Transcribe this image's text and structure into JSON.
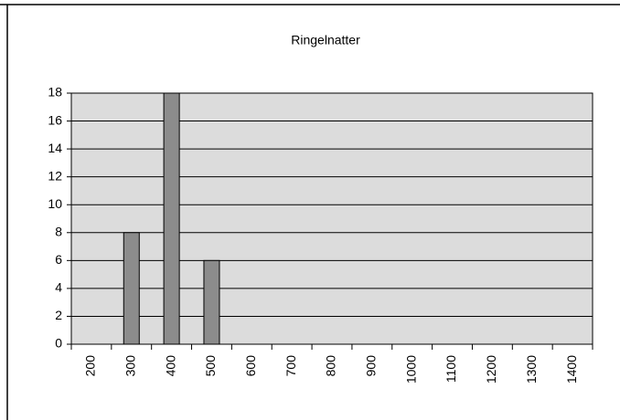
{
  "chart_data": {
    "type": "bar",
    "title": "Ringelnatter",
    "categories": [
      "200",
      "300",
      "400",
      "500",
      "600",
      "700",
      "800",
      "900",
      "1000",
      "1100",
      "1200",
      "1300",
      "1400"
    ],
    "values": [
      0,
      8,
      18,
      6,
      0,
      0,
      0,
      0,
      0,
      0,
      0,
      0,
      0
    ],
    "color": "#8c8c8c",
    "ylim": [
      0,
      18
    ],
    "yticks": [
      0,
      2,
      4,
      6,
      8,
      10,
      12,
      14,
      16,
      18
    ],
    "grid": true
  }
}
